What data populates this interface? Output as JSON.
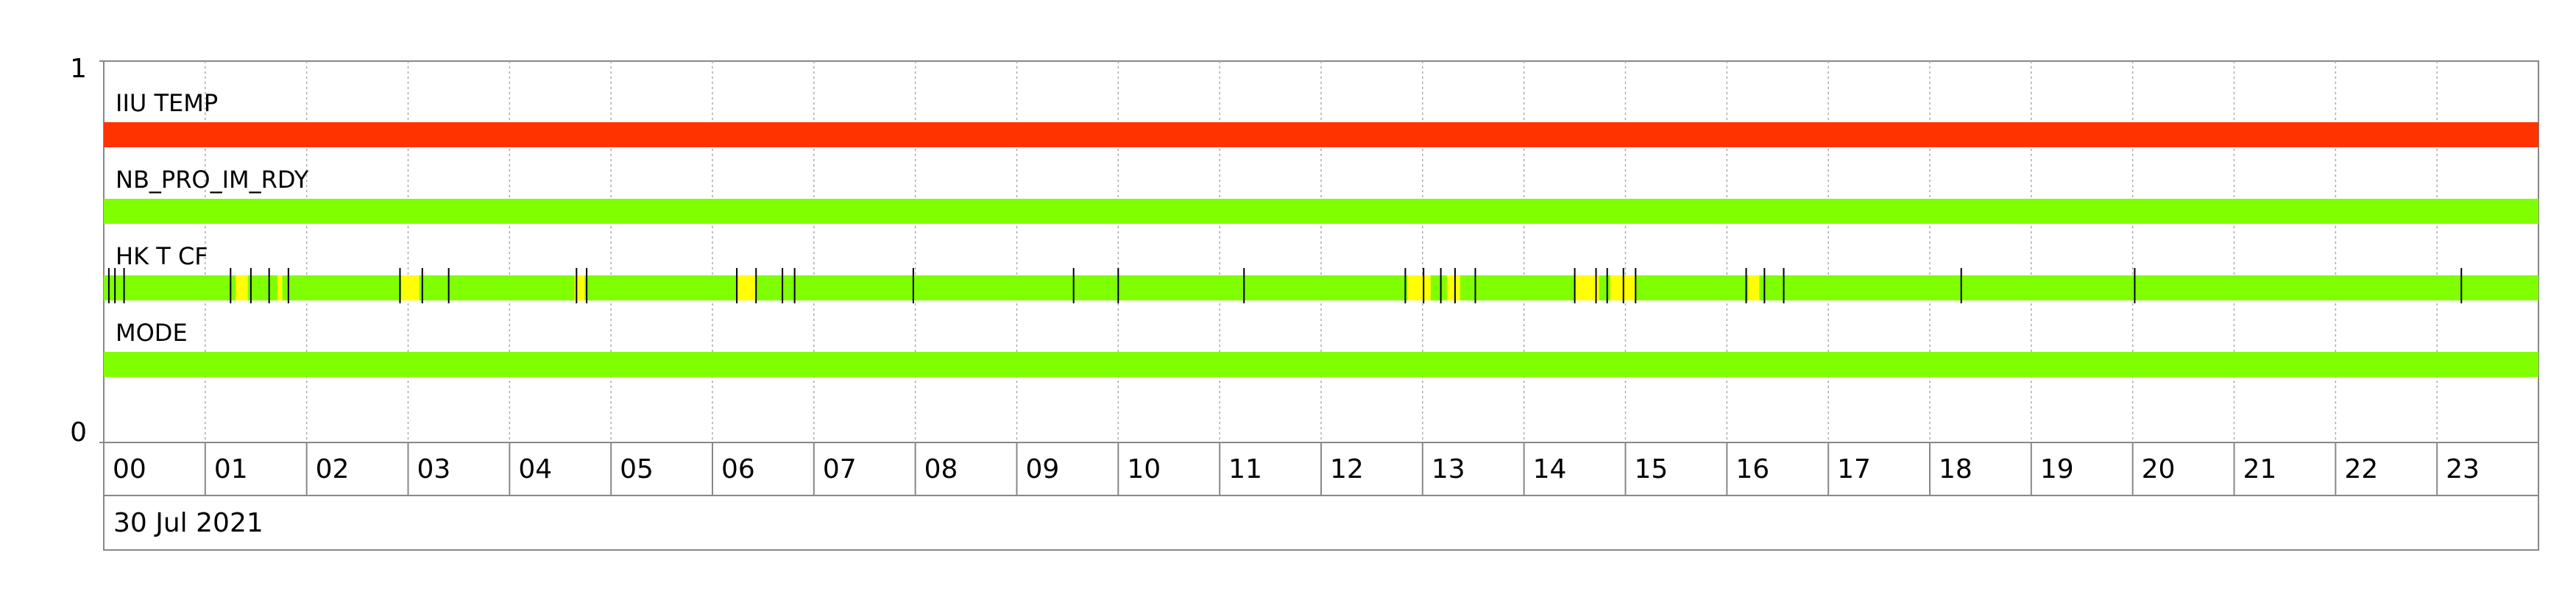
{
  "chart_data": {
    "type": "timeline",
    "x_label": "30 Jul 2021",
    "xlim": [
      0,
      24
    ],
    "xticks": [
      {
        "value": 0,
        "label": "00"
      },
      {
        "value": 1,
        "label": "01"
      },
      {
        "value": 2,
        "label": "02"
      },
      {
        "value": 3,
        "label": "03"
      },
      {
        "value": 4,
        "label": "04"
      },
      {
        "value": 5,
        "label": "05"
      },
      {
        "value": 6,
        "label": "06"
      },
      {
        "value": 7,
        "label": "07"
      },
      {
        "value": 8,
        "label": "08"
      },
      {
        "value": 9,
        "label": "09"
      },
      10,
      11,
      12,
      13,
      14,
      15,
      16,
      17,
      18,
      19,
      20,
      21,
      22,
      23
    ],
    "ylim": [
      0,
      1
    ],
    "yticks": [
      0,
      1
    ],
    "grid": true,
    "event_color": "#000000",
    "series": [
      {
        "name": "IIU TEMP",
        "color": "#ff3300"
      },
      {
        "name": "NB_PRO_IM_RDY",
        "color": "#7fff00"
      },
      {
        "name": "HK T CF",
        "color": "#7fff00",
        "alert_color": "#ffff00",
        "alerts": [
          [
            1.3,
            1.42
          ],
          [
            1.71,
            1.76
          ],
          [
            2.93,
            3.11
          ],
          [
            4.64,
            4.74
          ],
          [
            6.25,
            6.42
          ],
          [
            12.85,
            13.08
          ],
          [
            13.24,
            13.37
          ],
          [
            14.5,
            14.74
          ],
          [
            14.85,
            15.1
          ],
          [
            16.21,
            16.32
          ]
        ],
        "events": [
          0.05,
          0.11,
          0.2,
          1.25,
          1.45,
          1.63,
          1.82,
          2.92,
          3.14,
          3.4,
          4.66,
          4.76,
          6.24,
          6.43,
          6.69,
          6.81,
          7.98,
          9.56,
          10.0,
          11.24,
          12.83,
          13.01,
          13.18,
          13.32,
          13.52,
          14.5,
          14.71,
          14.82,
          14.98,
          15.1,
          16.19,
          16.37,
          16.56,
          18.31,
          20.02,
          23.24
        ]
      },
      {
        "name": "MODE",
        "color": "#7fff00"
      }
    ]
  }
}
